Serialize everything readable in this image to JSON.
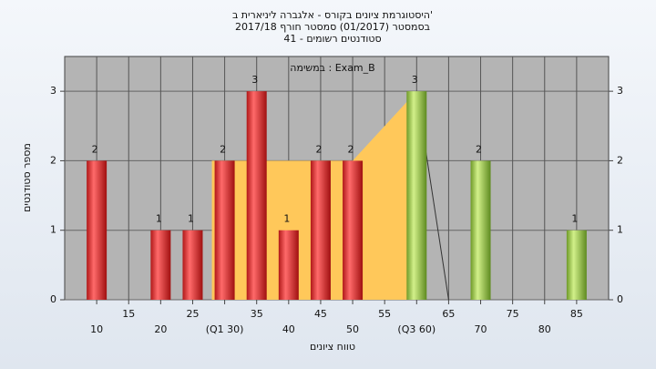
{
  "chart_data": {
    "type": "bar",
    "title": [
      "היסטוגרמת ציונים בקורס - אלגברה ליניארית ב'",
      "בסמסטר  (01/2017)  סמסטר חורף 2017/18",
      "41 - סטודנטים רשומים"
    ],
    "annotation": "במשימה : Exam_B",
    "x_label": "טווח ציונים",
    "y_label": "מספר סטודנטים",
    "x": [
      10,
      15,
      20,
      25,
      30,
      35,
      40,
      45,
      50,
      55,
      60,
      65,
      70,
      75,
      80,
      85
    ],
    "values": [
      2,
      0,
      1,
      1,
      2,
      3,
      1,
      2,
      2,
      0,
      3,
      0,
      2,
      0,
      0,
      1
    ],
    "colors": [
      "#e03030",
      "#e03030",
      "#e03030",
      "#e03030",
      "#e03030",
      "#e03030",
      "#e03030",
      "#e03030",
      "#e03030",
      "#8fc040",
      "#8fc040",
      "#8fc040",
      "#8fc040",
      "#8fc040",
      "#8fc040",
      "#8fc040"
    ],
    "area": {
      "x": [
        28,
        50,
        60
      ],
      "values": [
        2,
        2,
        3
      ],
      "color": "#ffc85a"
    },
    "line": {
      "x": [
        60,
        65
      ],
      "values": [
        3,
        0
      ],
      "color": "#333333"
    },
    "xlim": [
      5,
      90
    ],
    "ylim": [
      0,
      3.5
    ],
    "xticks": [
      10,
      15,
      20,
      25,
      {
        "value": 30,
        "label": "(Q1 30)"
      },
      35,
      40,
      45,
      50,
      55,
      {
        "value": 60,
        "label": "(Q3 60)"
      },
      65,
      70,
      75,
      80,
      85
    ],
    "yticks": [
      0,
      1,
      2,
      3
    ],
    "grid": true
  }
}
